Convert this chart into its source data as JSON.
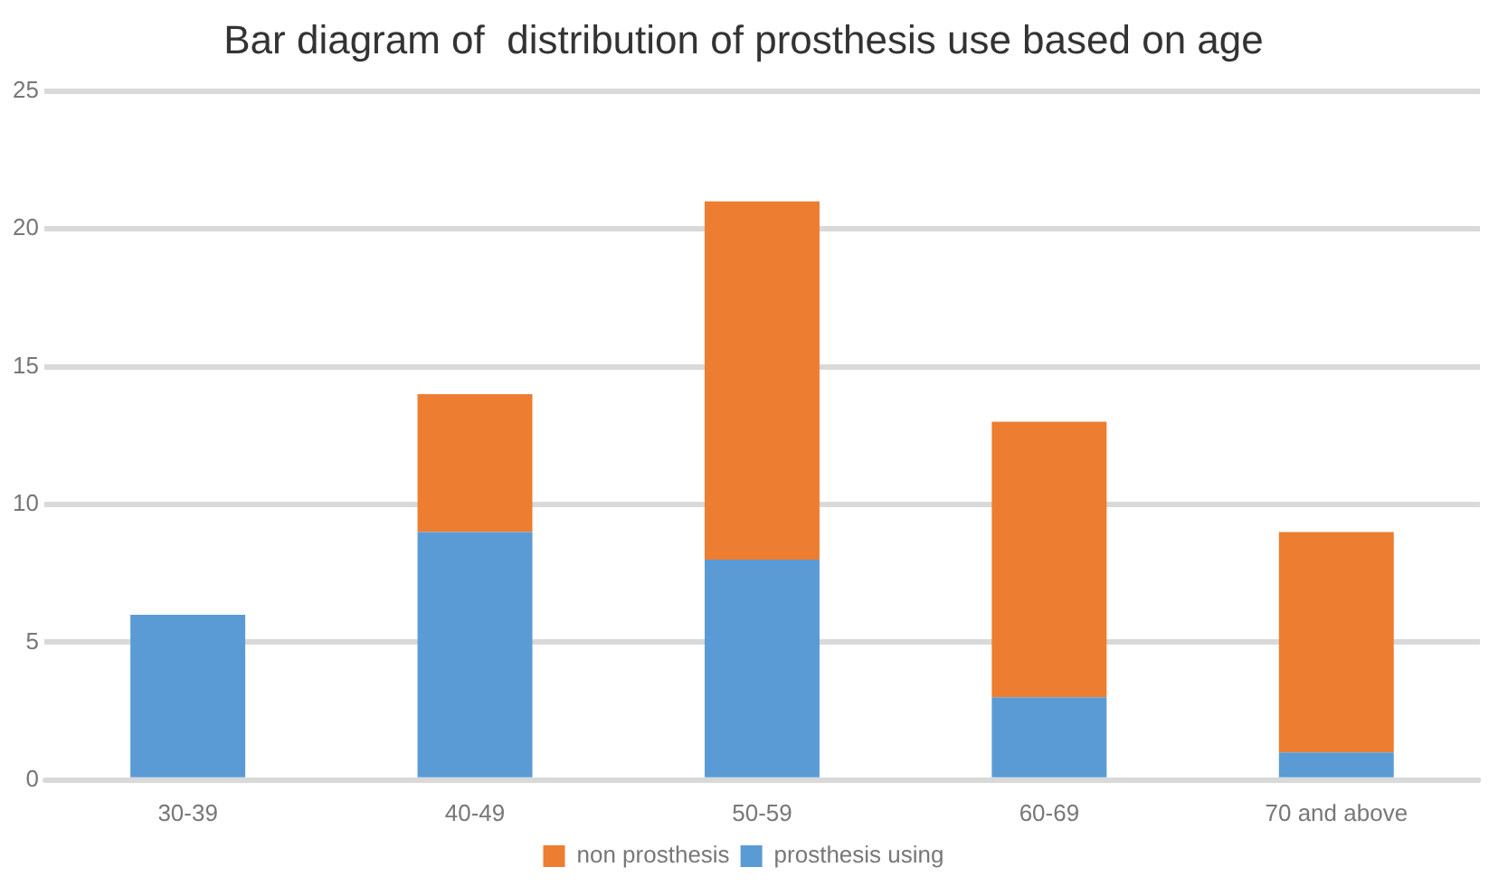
{
  "chart_data": {
    "type": "bar",
    "title": "Bar diagram of  distribution of prosthesis use based on age",
    "categories": [
      "30-39",
      "40-49",
      "50-59",
      "60-69",
      "70 and above"
    ],
    "series": [
      {
        "name": "prosthesis using",
        "color": "#5b9bd5",
        "values": [
          6,
          9,
          8,
          3,
          1
        ]
      },
      {
        "name": "non prosthesis",
        "color": "#ed7d31",
        "values": [
          0,
          5,
          13,
          10,
          8
        ]
      }
    ],
    "stacked": true,
    "ylim": [
      0,
      25
    ],
    "yticks": [
      0,
      5,
      10,
      15,
      20,
      25
    ],
    "grid": "y",
    "legend": "bottom"
  }
}
